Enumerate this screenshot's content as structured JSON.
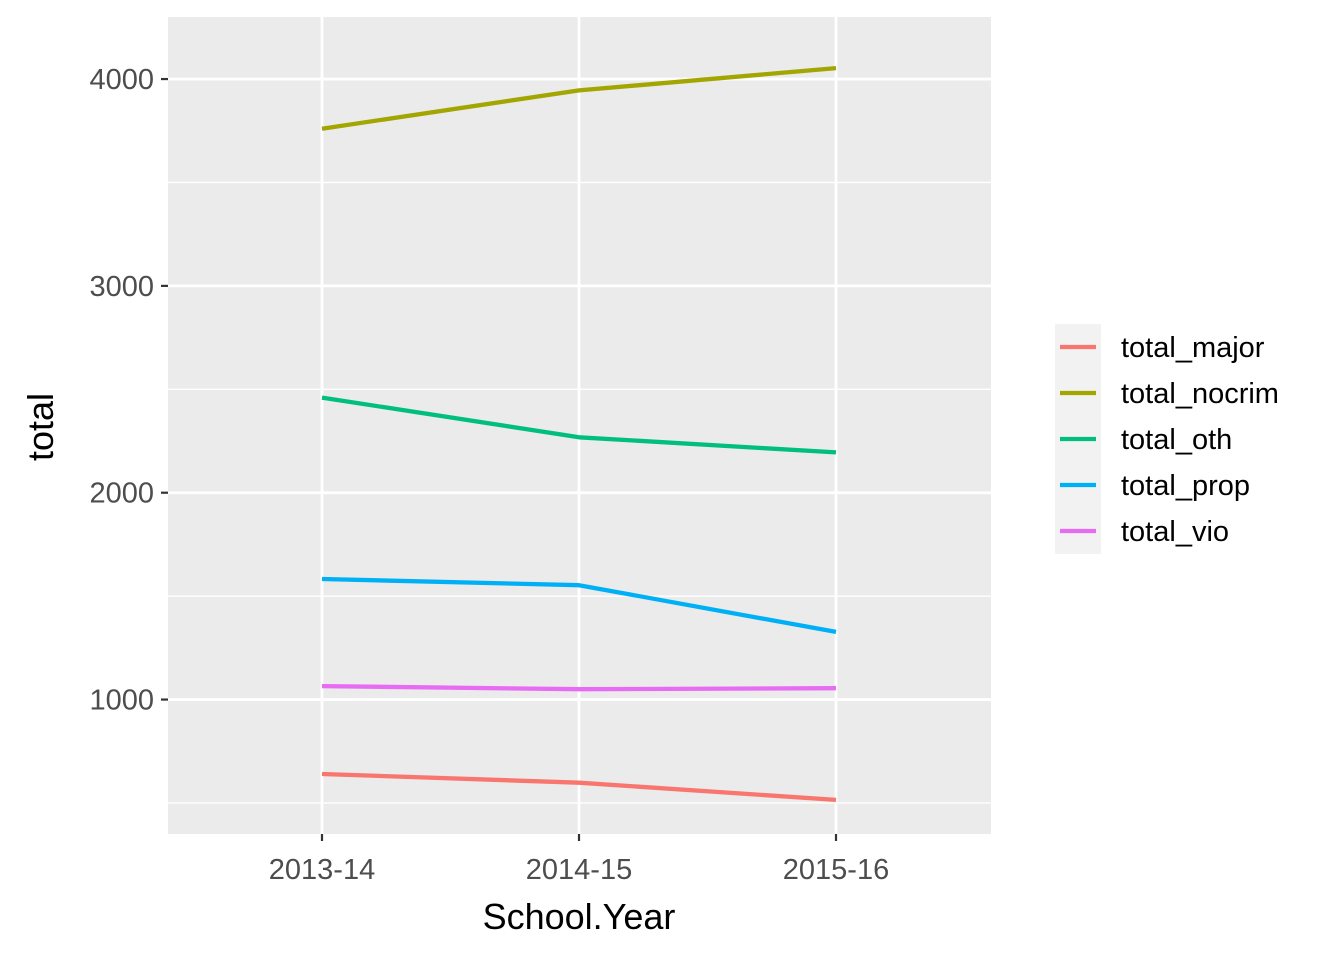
{
  "chart_data": {
    "type": "line",
    "title": "",
    "xlabel": "School.Year",
    "ylabel": "total",
    "categories": [
      "2013-14",
      "2014-15",
      "2015-16"
    ],
    "ylim": [
      350,
      4300
    ],
    "yticks": [
      1000,
      2000,
      3000,
      4000
    ],
    "grid": true,
    "legend_position": "right",
    "series": [
      {
        "name": "total_major",
        "color": "#F8766D",
        "values": [
          640,
          598,
          515
        ]
      },
      {
        "name": "total_nocrim",
        "color": "#A3A500",
        "values": [
          3760,
          3945,
          4053
        ]
      },
      {
        "name": "total_oth",
        "color": "#00BF7D",
        "values": [
          2460,
          2268,
          2195
        ]
      },
      {
        "name": "total_prop",
        "color": "#00B0F6",
        "values": [
          1583,
          1553,
          1327
        ]
      },
      {
        "name": "total_vio",
        "color": "#E76BF3",
        "values": [
          1065,
          1050,
          1055
        ]
      }
    ]
  }
}
